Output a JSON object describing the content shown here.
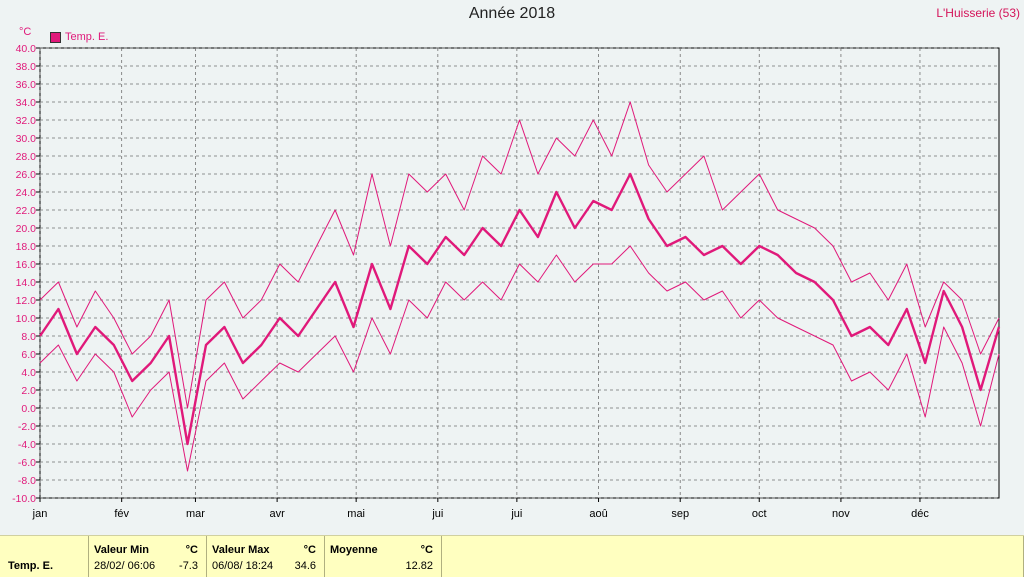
{
  "header": {
    "title": "Année 2018",
    "station": "L'Huisserie (53)",
    "unit": "°C",
    "legend_label": "Temp. E."
  },
  "colors": {
    "series": "#e0197a",
    "background": "#eef3f3",
    "footer": "#ffffc0"
  },
  "chart_data": {
    "type": "line",
    "title": "Année 2018",
    "ylabel": "°C",
    "ylim": [
      -10,
      40
    ],
    "y_ticks": [
      "-10.0",
      "-8.0",
      "-6.0",
      "-4.0",
      "-2.0",
      "0.0",
      "2.0",
      "4.0",
      "6.0",
      "8.0",
      "10.0",
      "12.0",
      "14.0",
      "16.0",
      "18.0",
      "20.0",
      "22.0",
      "24.0",
      "26.0",
      "28.0",
      "30.0",
      "32.0",
      "34.0",
      "36.0",
      "38.0",
      "40.0"
    ],
    "x_labels": [
      "jan",
      "fév",
      "mar",
      "avr",
      "mai",
      "jui",
      "jui",
      "aoû",
      "sep",
      "oct",
      "nov",
      "déc"
    ],
    "month_start_days": [
      1,
      32,
      60,
      91,
      121,
      152,
      182,
      213,
      244,
      274,
      305,
      335
    ],
    "days_in_year": 365,
    "grid": true,
    "legend": "top-left",
    "series": [
      {
        "name": "Temp. E.",
        "style": "mean",
        "x_day": [
          1,
          8,
          15,
          22,
          29,
          36,
          43,
          50,
          57,
          64,
          71,
          78,
          85,
          92,
          99,
          106,
          113,
          120,
          127,
          134,
          141,
          148,
          155,
          162,
          169,
          176,
          183,
          190,
          197,
          204,
          211,
          218,
          225,
          232,
          239,
          246,
          253,
          260,
          267,
          274,
          281,
          288,
          295,
          302,
          309,
          316,
          323,
          330,
          337,
          344,
          351,
          358,
          365
        ],
        "values": [
          8,
          11,
          6,
          9,
          7,
          3,
          5,
          8,
          -4,
          7,
          9,
          5,
          7,
          10,
          8,
          11,
          14,
          9,
          16,
          11,
          18,
          16,
          19,
          17,
          20,
          18,
          22,
          19,
          24,
          20,
          23,
          22,
          26,
          21,
          18,
          19,
          17,
          18,
          16,
          18,
          17,
          15,
          14,
          12,
          8,
          9,
          7,
          11,
          5,
          13,
          9,
          2,
          9
        ]
      },
      {
        "name": "",
        "style": "max",
        "x_day": [
          1,
          8,
          15,
          22,
          29,
          36,
          43,
          50,
          57,
          64,
          71,
          78,
          85,
          92,
          99,
          106,
          113,
          120,
          127,
          134,
          141,
          148,
          155,
          162,
          169,
          176,
          183,
          190,
          197,
          204,
          211,
          218,
          225,
          232,
          239,
          246,
          253,
          260,
          267,
          274,
          281,
          288,
          295,
          302,
          309,
          316,
          323,
          330,
          337,
          344,
          351,
          358,
          365
        ],
        "values": [
          12,
          14,
          9,
          13,
          10,
          6,
          8,
          12,
          0,
          12,
          14,
          10,
          12,
          16,
          14,
          18,
          22,
          17,
          26,
          18,
          26,
          24,
          26,
          22,
          28,
          26,
          32,
          26,
          30,
          28,
          32,
          28,
          34,
          27,
          24,
          26,
          28,
          22,
          24,
          26,
          22,
          21,
          20,
          18,
          14,
          15,
          12,
          16,
          9,
          14,
          12,
          6,
          10
        ]
      },
      {
        "name": "",
        "style": "min",
        "x_day": [
          1,
          8,
          15,
          22,
          29,
          36,
          43,
          50,
          57,
          64,
          71,
          78,
          85,
          92,
          99,
          106,
          113,
          120,
          127,
          134,
          141,
          148,
          155,
          162,
          169,
          176,
          183,
          190,
          197,
          204,
          211,
          218,
          225,
          232,
          239,
          246,
          253,
          260,
          267,
          274,
          281,
          288,
          295,
          302,
          309,
          316,
          323,
          330,
          337,
          344,
          351,
          358,
          365
        ],
        "values": [
          5,
          7,
          3,
          6,
          4,
          -1,
          2,
          4,
          -7,
          3,
          5,
          1,
          3,
          5,
          4,
          6,
          8,
          4,
          10,
          6,
          12,
          10,
          14,
          12,
          14,
          12,
          16,
          14,
          17,
          14,
          16,
          16,
          18,
          15,
          13,
          14,
          12,
          13,
          10,
          12,
          10,
          9,
          8,
          7,
          3,
          4,
          2,
          6,
          -1,
          9,
          5,
          -2,
          6
        ]
      }
    ]
  },
  "stats": {
    "row_label": "Temp. E.",
    "min_label": "Valeur Min",
    "min_unit": "°C",
    "min_date": "28/02/  06:06",
    "min_value": "-7.3",
    "max_label": "Valeur Max",
    "max_unit": "°C",
    "max_date": "06/08/  18:24",
    "max_value": "34.6",
    "avg_label": "Moyenne",
    "avg_unit": "°C",
    "avg_value": "12.82"
  }
}
